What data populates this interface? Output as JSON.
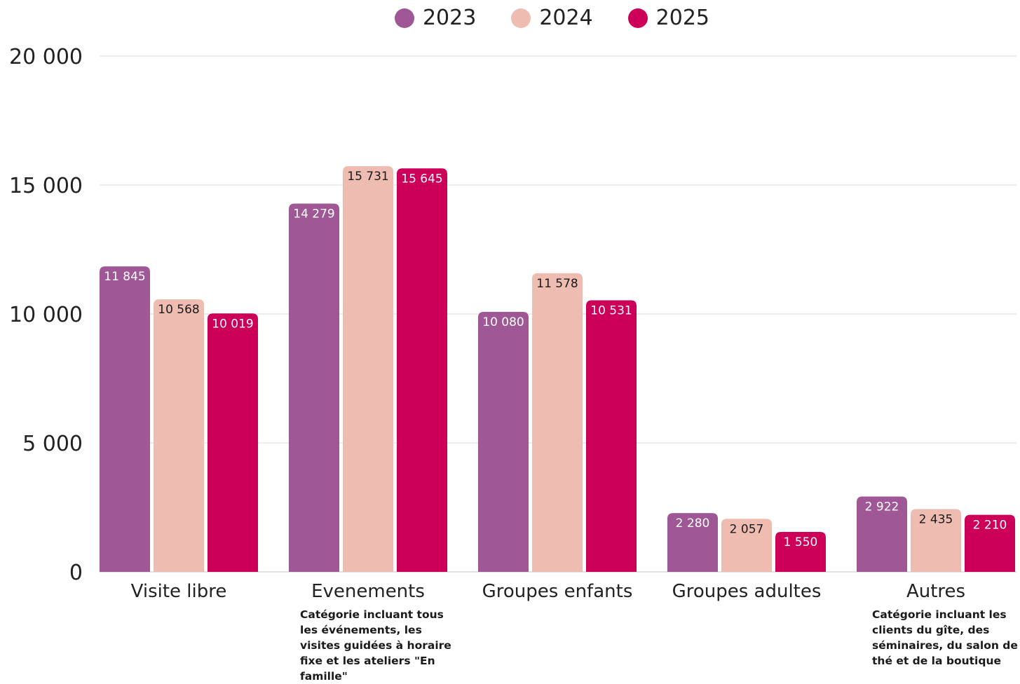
{
  "chart_data": {
    "type": "bar",
    "categories": [
      "Visite libre",
      "Evenements",
      "Groupes enfants",
      "Groupes adultes",
      "Autres"
    ],
    "series": [
      {
        "name": "2023",
        "color": "#a05796",
        "values": [
          11845,
          14279,
          10080,
          2280,
          2922
        ],
        "labels": [
          "11 845",
          "14 279",
          "10 080",
          "2 280",
          "2 922"
        ]
      },
      {
        "name": "2024",
        "color": "#efbcb2",
        "values": [
          10568,
          15731,
          11578,
          2057,
          2435
        ],
        "labels": [
          "10 568",
          "15 731",
          "11 578",
          "2 057",
          "2 435"
        ]
      },
      {
        "name": "2025",
        "color": "#cc0058",
        "values": [
          10019,
          15645,
          10531,
          1550,
          2210
        ],
        "labels": [
          "10 019",
          "15 645",
          "10 531",
          "1 550",
          "2 210"
        ]
      }
    ],
    "yticks": [
      0,
      5000,
      10000,
      15000,
      20000
    ],
    "ytick_labels": [
      "0",
      "5 000",
      "10 000",
      "15 000",
      "20 000"
    ],
    "ylim": [
      0,
      20000
    ],
    "grid": true,
    "legend_position": "top-center",
    "title": "",
    "xlabel": "",
    "ylabel": ""
  },
  "notes": {
    "evenements": "Catégorie incluant tous les événements, les visites guidées à horaire fixe et les ateliers \"En famille\"",
    "autres": "Catégorie incluant les clients du gîte, des séminaires, du salon de thé et de la boutique"
  }
}
